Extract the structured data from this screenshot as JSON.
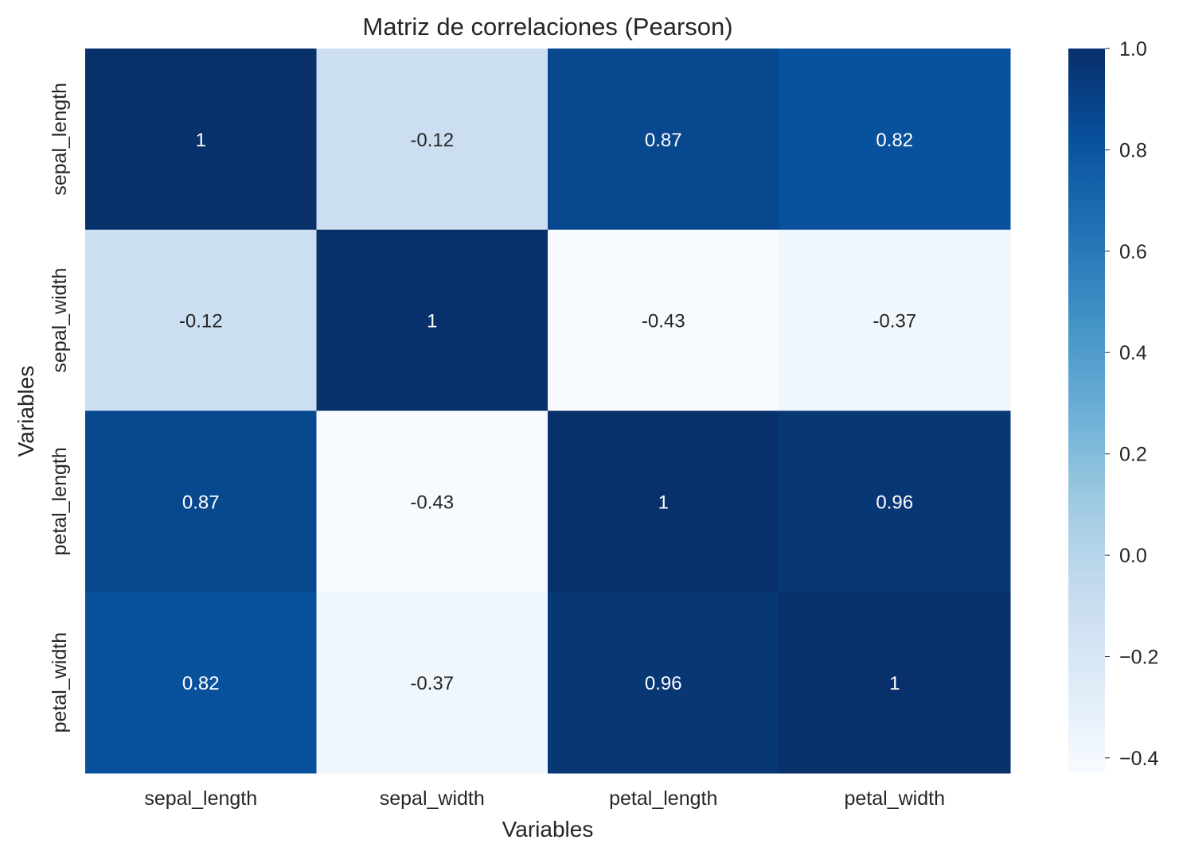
{
  "chart_data": {
    "type": "heatmap",
    "title": "Matriz de correlaciones (Pearson)",
    "xlabel": "Variables",
    "ylabel": "Variables",
    "x_categories": [
      "sepal_length",
      "sepal_width",
      "petal_length",
      "petal_width"
    ],
    "y_categories": [
      "sepal_length",
      "sepal_width",
      "petal_length",
      "petal_width"
    ],
    "values": [
      [
        1,
        -0.12,
        0.87,
        0.82
      ],
      [
        -0.12,
        1,
        -0.43,
        -0.37
      ],
      [
        0.87,
        -0.43,
        1,
        0.96
      ],
      [
        0.82,
        -0.37,
        0.96,
        1
      ]
    ],
    "value_labels": [
      [
        "1",
        "-0.12",
        "0.87",
        "0.82"
      ],
      [
        "-0.12",
        "1",
        "-0.43",
        "-0.37"
      ],
      [
        "0.87",
        "-0.43",
        "1",
        "0.96"
      ],
      [
        "0.82",
        "-0.37",
        "0.96",
        "1"
      ]
    ],
    "colormap": "Blues",
    "colorbar": {
      "range": [
        -0.43,
        1.0
      ],
      "tick_values": [
        1.0,
        0.8,
        0.6,
        0.4,
        0.2,
        0.0,
        -0.2,
        -0.4
      ],
      "tick_labels": [
        "1.0",
        "0.8",
        "0.6",
        "0.4",
        "0.2",
        "0.0",
        "−0.2",
        "−0.4"
      ]
    },
    "colors": {
      "blues_stops": [
        "#f7fbff",
        "#deebf7",
        "#c6dbef",
        "#9ecae1",
        "#6baed6",
        "#4292c6",
        "#2171b5",
        "#08519c",
        "#08306b"
      ],
      "text_light": "#ffffff",
      "text_dark": "#262626"
    }
  }
}
